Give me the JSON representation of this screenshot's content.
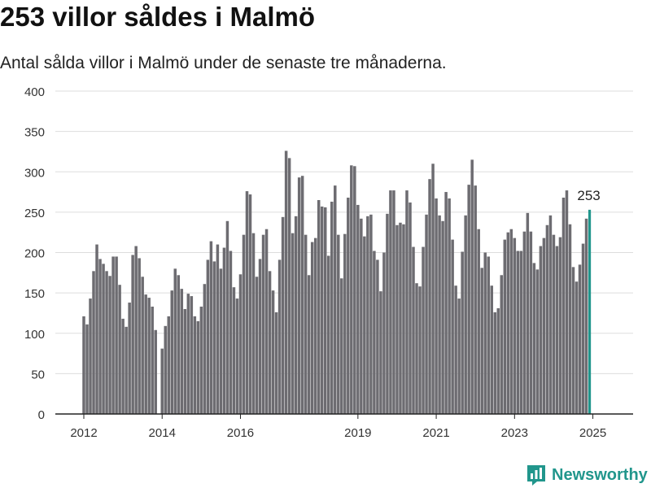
{
  "header": {
    "title": "253 villor såldes i Malmö",
    "subtitle": "Antal sålda villor i Malmö under de senaste tre månaderna."
  },
  "brand": {
    "name": "Newsworthy",
    "icon": "newsworthy-logo-icon",
    "color": "#21968c"
  },
  "chart_data": {
    "type": "bar",
    "title": "253 villor såldes i Malmö",
    "subtitle": "Antal sålda villor i Malmö under de senaste tre månaderna.",
    "xlabel": "",
    "ylabel": "",
    "ylim": [
      0,
      400
    ],
    "yticks": [
      0,
      50,
      100,
      150,
      200,
      250,
      300,
      350,
      400
    ],
    "xtick_labels": [
      "2012",
      "2014",
      "2016",
      "2019",
      "2021",
      "2023",
      "2025"
    ],
    "grid": true,
    "bar_color": "#6d6c71",
    "highlight_color": "#21968c",
    "highlight_label": "253",
    "start_month": "2012-01",
    "end_month": "2025-06",
    "values": [
      121,
      111,
      143,
      177,
      210,
      192,
      186,
      177,
      171,
      195,
      195,
      160,
      118,
      108,
      138,
      197,
      208,
      193,
      170,
      148,
      144,
      133,
      104,
      0,
      81,
      109,
      121,
      153,
      180,
      172,
      155,
      130,
      149,
      146,
      121,
      115,
      133,
      161,
      191,
      214,
      189,
      210,
      180,
      206,
      239,
      202,
      157,
      143,
      173,
      222,
      276,
      272,
      224,
      170,
      192,
      222,
      229,
      177,
      153,
      126,
      191,
      244,
      326,
      317,
      224,
      245,
      293,
      295,
      222,
      172,
      213,
      218,
      265,
      257,
      256,
      196,
      263,
      283,
      222,
      168,
      223,
      268,
      308,
      307,
      259,
      242,
      220,
      245,
      247,
      202,
      191,
      152,
      200,
      248,
      277,
      277,
      234,
      237,
      235,
      277,
      262,
      207,
      162,
      158,
      207,
      247,
      291,
      310,
      267,
      246,
      239,
      275,
      267,
      216,
      159,
      143,
      201,
      246,
      284,
      315,
      283,
      229,
      181,
      200,
      195,
      159,
      126,
      131,
      172,
      216,
      225,
      229,
      218,
      202,
      202,
      226,
      249,
      226,
      187,
      179,
      208,
      218,
      234,
      246,
      222,
      208,
      219,
      268,
      277,
      235,
      182,
      164,
      185,
      211,
      242,
      253
    ]
  }
}
